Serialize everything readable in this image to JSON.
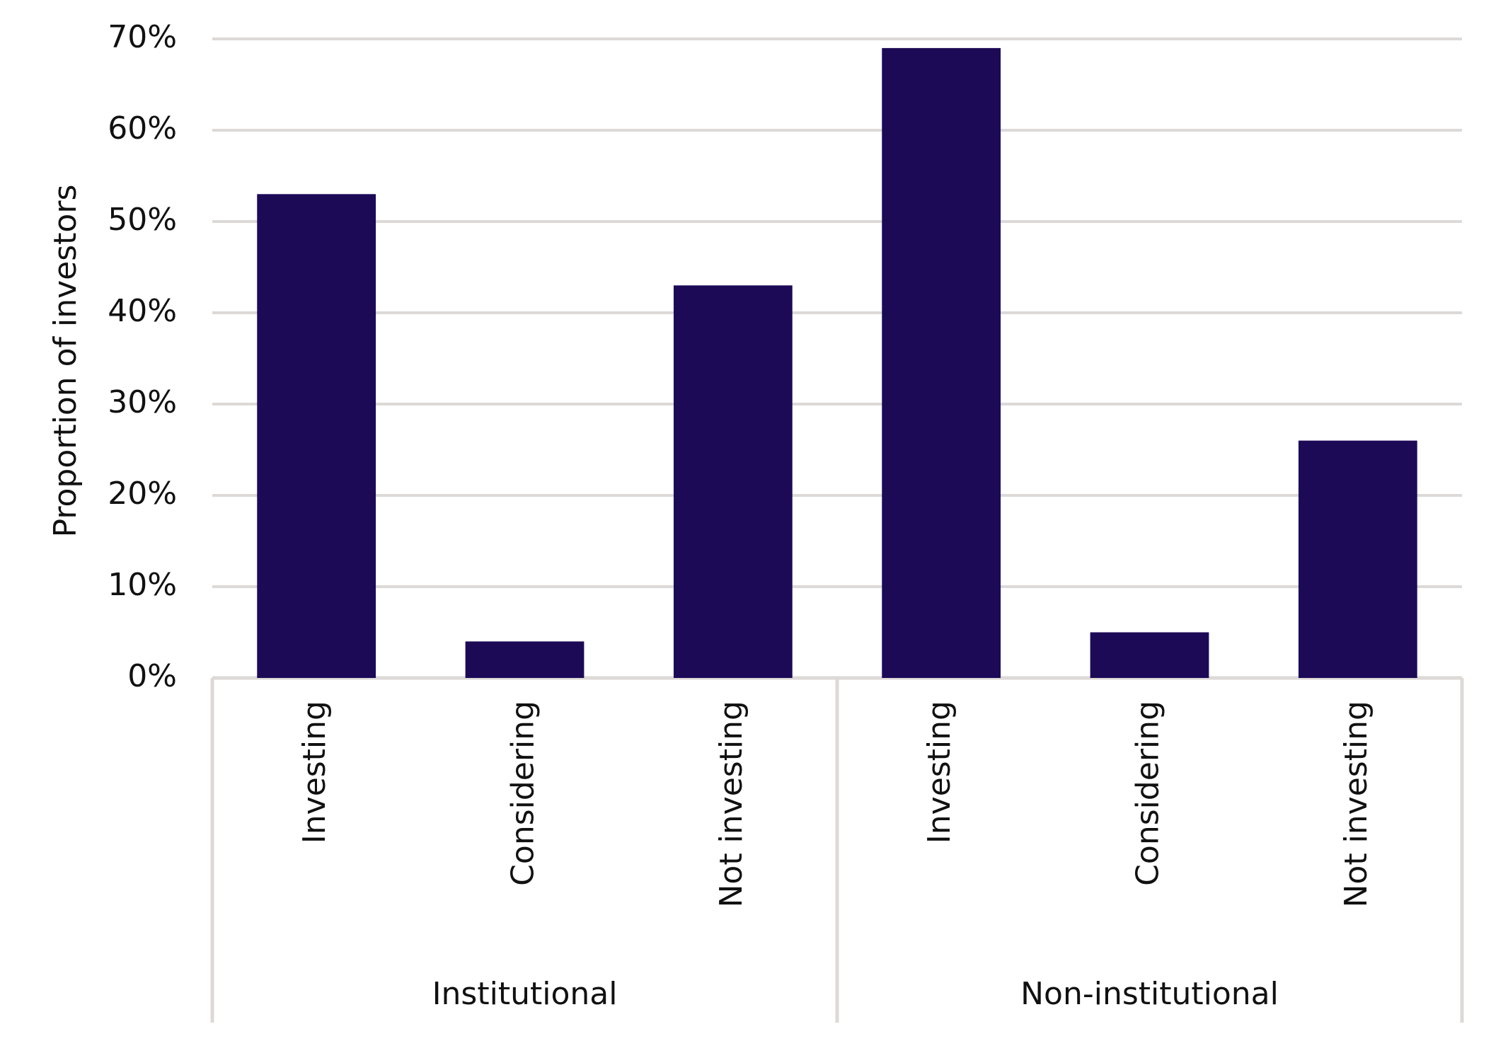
{
  "chart_data": {
    "type": "bar",
    "y_label": "Proportion of investors",
    "color": "#1c0a57",
    "grid": true,
    "ylim": [
      0,
      70
    ],
    "yticks": [
      {
        "value": 0,
        "label": "0%"
      },
      {
        "value": 10,
        "label": "10%"
      },
      {
        "value": 20,
        "label": "20%"
      },
      {
        "value": 30,
        "label": "30%"
      },
      {
        "value": 40,
        "label": "40%"
      },
      {
        "value": 50,
        "label": "50%"
      },
      {
        "value": 60,
        "label": "60%"
      },
      {
        "value": 70,
        "label": "70%"
      }
    ],
    "groups": [
      {
        "label": "Institutional",
        "categories": [
          "Investing",
          "Considering",
          "Not investing"
        ],
        "values": [
          53,
          4,
          43
        ]
      },
      {
        "label": "Non-institutional",
        "categories": [
          "Investing",
          "Considering",
          "Not investing"
        ],
        "values": [
          69,
          5,
          26
        ]
      }
    ]
  }
}
